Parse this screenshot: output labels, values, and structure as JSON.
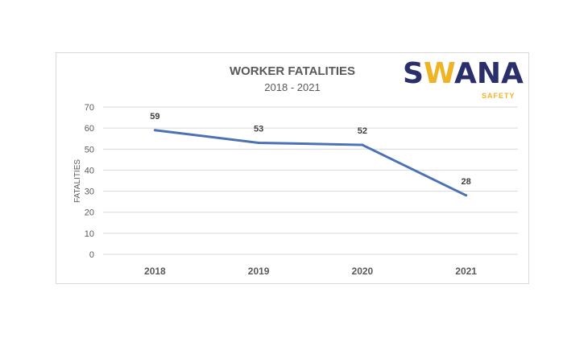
{
  "logo": {
    "text": "SWANA",
    "subtext": "SAFETY",
    "colors": {
      "navy": "#2a2f6b",
      "yellow": "#f0b323"
    }
  },
  "chart_data": {
    "type": "line",
    "title": "WORKER FATALITIES",
    "subtitle": "2018 - 2021",
    "xlabel": "",
    "ylabel": "FATALITIES",
    "categories": [
      "2018",
      "2019",
      "2020",
      "2021"
    ],
    "values": [
      59,
      53,
      52,
      28
    ],
    "ylim": [
      0,
      70
    ],
    "yticks": [
      0,
      10,
      20,
      30,
      40,
      50,
      60,
      70
    ],
    "grid": true,
    "data_labels": true,
    "line_color": "#4a72b5"
  }
}
